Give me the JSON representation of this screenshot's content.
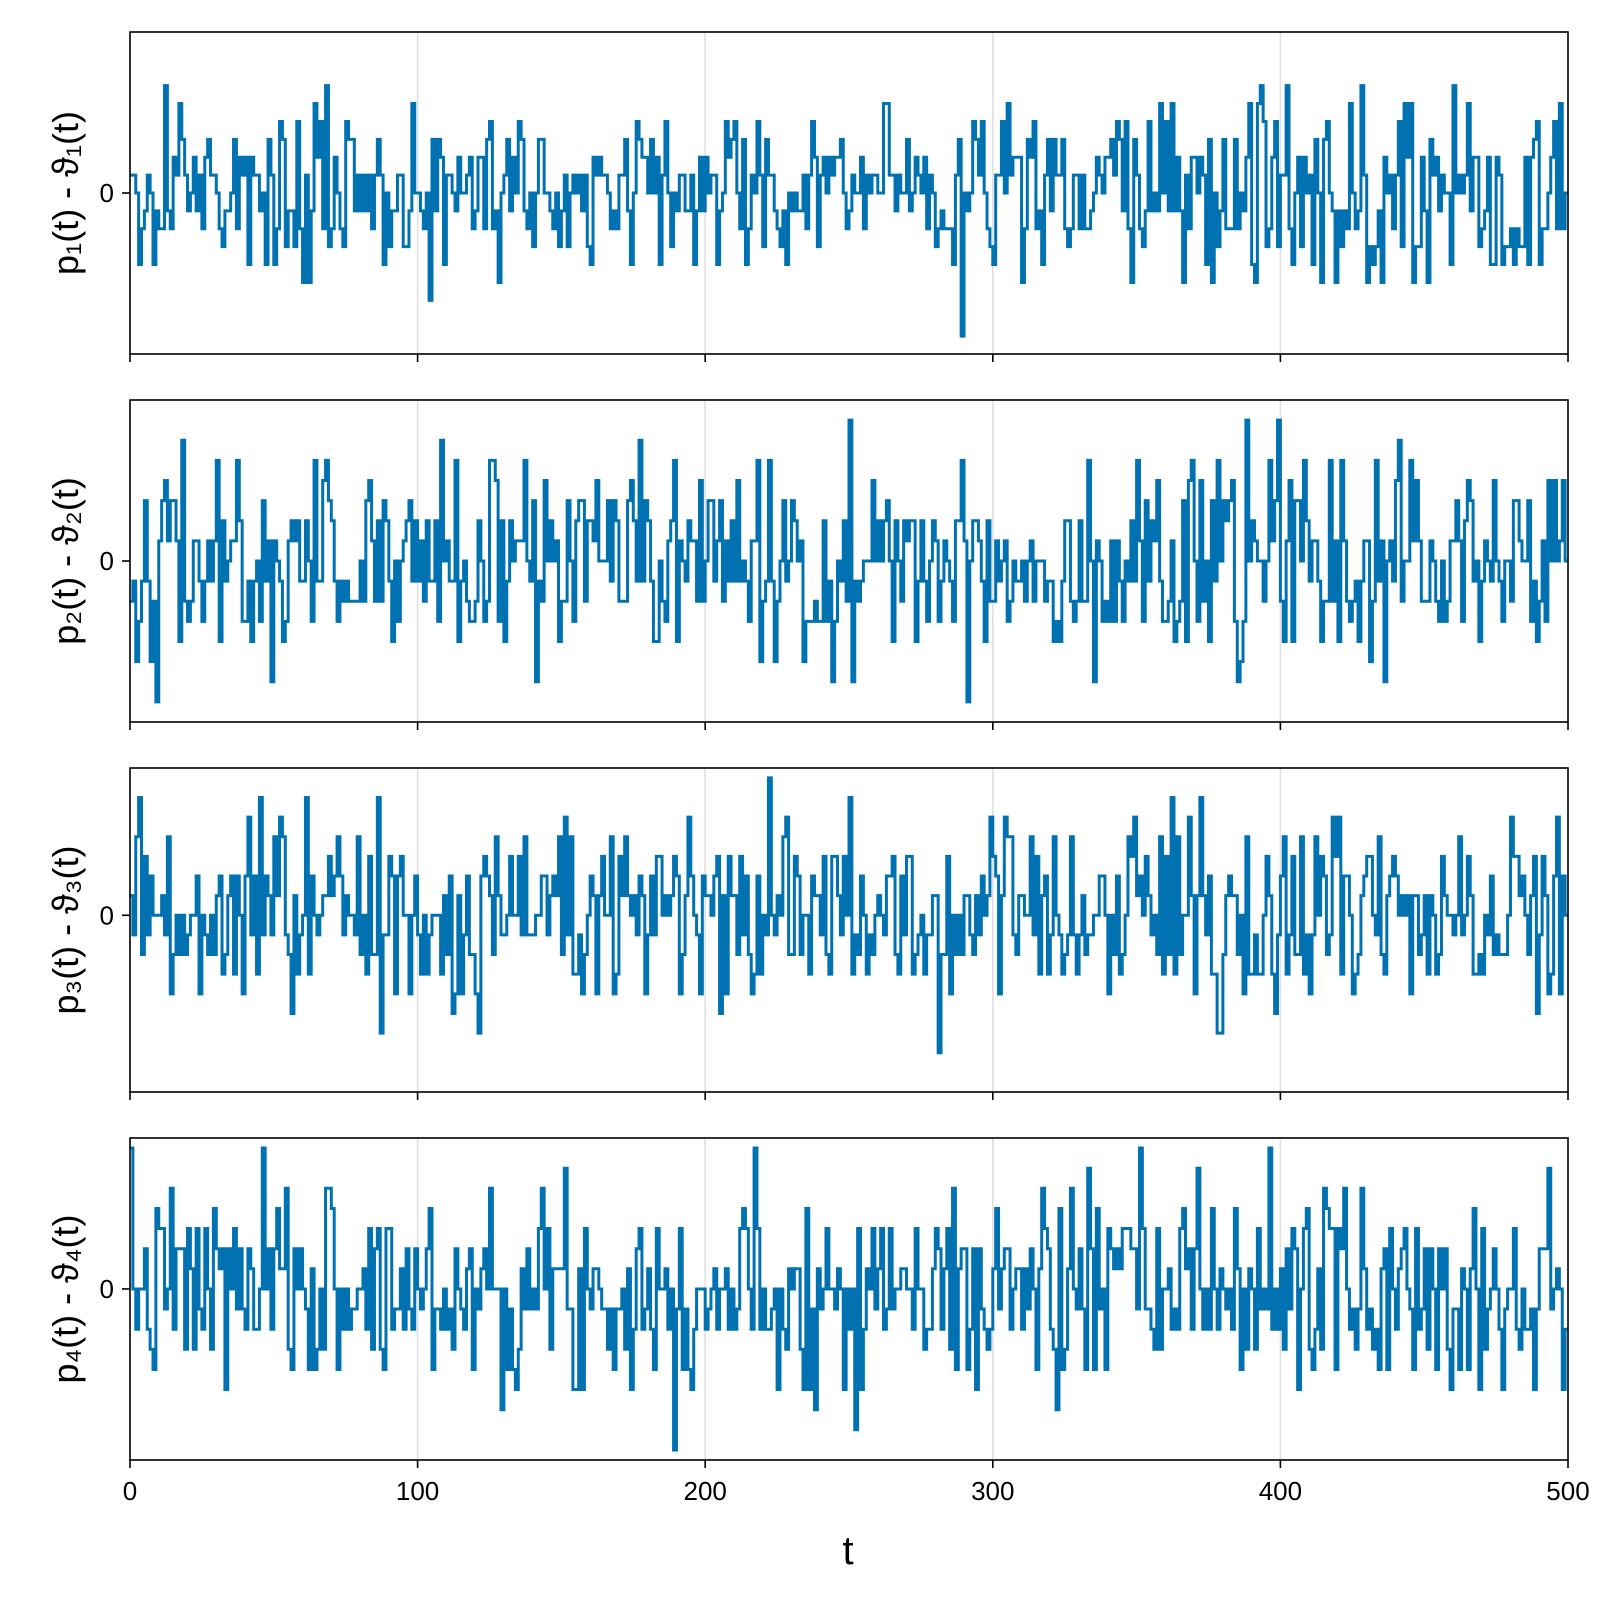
{
  "chart_data": {
    "type": "line",
    "layout": "4 vertically stacked panels sharing the x axis",
    "grid": "vertical gridlines only",
    "xlabel": "t",
    "xlim": [
      0,
      500
    ],
    "xticks": [
      0,
      100,
      200,
      300,
      400,
      500
    ],
    "x_tick_labels": [
      "0",
      "100",
      "200",
      "300",
      "400",
      "500"
    ],
    "color": "#0072b2",
    "step": "stair-step (value held constant on each unit interval)",
    "panels": [
      {
        "ylabel": "p₁(t) - ϑ₁(t)",
        "yticks": [
          0
        ],
        "y_tick_labels": [
          "0"
        ],
        "ylim": [
          -9,
          9
        ],
        "seed": 17,
        "values_range": [
          -8,
          8
        ],
        "summary": "integer-valued random fluctuations around 0, t = 0..500"
      },
      {
        "ylabel": "p₂(t) - ϑ₂(t)",
        "yticks": [
          0
        ],
        "y_tick_labels": [
          "0"
        ],
        "ylim": [
          -8,
          8
        ],
        "seed": 42,
        "values_range": [
          -7,
          7
        ],
        "summary": "integer-valued random fluctuations around 0, t = 0..500"
      },
      {
        "ylabel": "p₃(t) - ϑ₃(t)",
        "yticks": [
          0
        ],
        "y_tick_labels": [
          "0"
        ],
        "ylim": [
          -9,
          7.5
        ],
        "seed": 99,
        "values_range": [
          -8,
          7
        ],
        "summary": "integer-valued random fluctuations around 0, t = 0..500"
      },
      {
        "ylabel": "p₄(t) - ϑ₄(t)",
        "yticks": [
          0
        ],
        "y_tick_labels": [
          "0"
        ],
        "ylim": [
          -8.5,
          7.5
        ],
        "seed": 7,
        "values_range": [
          -8,
          7
        ],
        "summary": "integer-valued random fluctuations around 0, t = 0..500"
      }
    ]
  }
}
